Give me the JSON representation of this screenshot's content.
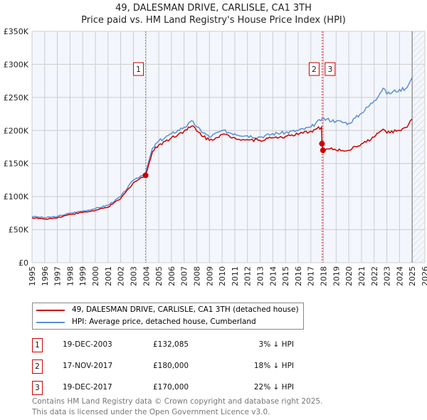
{
  "chart_data": {
    "type": "line",
    "title": "49, DALESMAN DRIVE, CARLISLE, CA1 3TH",
    "subtitle": "Price paid vs. HM Land Registry's House Price Index (HPI)",
    "xlim": [
      1995,
      2026
    ],
    "ylim": [
      0,
      350000
    ],
    "x_ticks": [
      "1995",
      "1996",
      "1997",
      "1998",
      "1999",
      "2000",
      "2001",
      "2002",
      "2003",
      "2004",
      "2005",
      "2006",
      "2007",
      "2008",
      "2009",
      "2010",
      "2011",
      "2012",
      "2013",
      "2014",
      "2015",
      "2016",
      "2017",
      "2018",
      "2019",
      "2020",
      "2021",
      "2022",
      "2023",
      "2024",
      "2025",
      "2026"
    ],
    "y_ticks": [
      {
        "v": 0,
        "l": "£0"
      },
      {
        "v": 50000,
        "l": "£50K"
      },
      {
        "v": 100000,
        "l": "£100K"
      },
      {
        "v": 150000,
        "l": "£150K"
      },
      {
        "v": 200000,
        "l": "£200K"
      },
      {
        "v": 250000,
        "l": "£250K"
      },
      {
        "v": 300000,
        "l": "£300K"
      },
      {
        "v": 350000,
        "l": "£350K"
      }
    ],
    "grid": true,
    "forecast_start": 2025.0,
    "series": [
      {
        "name": "49, DALESMAN DRIVE, CARLISLE, CA1 3TH (detached house)",
        "color": "#cc0000",
        "x": [
          1995,
          1996,
          1997,
          1998,
          1999,
          2000,
          2001,
          2002,
          2003,
          2003.96,
          2004.5,
          2005,
          2006,
          2007,
          2007.7,
          2008,
          2009,
          2010,
          2011,
          2012,
          2013,
          2014,
          2015,
          2016,
          2017,
          2017.85,
          2017.88,
          2017.96,
          2018.5,
          2019,
          2020,
          2021,
          2022,
          2022.7,
          2023,
          2024,
          2024.6,
          2025
        ],
        "y": [
          68000,
          66000,
          68000,
          73000,
          76000,
          79000,
          84000,
          97000,
          121000,
          132085,
          168000,
          178000,
          189000,
          199000,
          207000,
          199000,
          185000,
          194000,
          189000,
          186000,
          185000,
          189000,
          191000,
          194000,
          199000,
          205000,
          180000,
          170000,
          172000,
          170000,
          170000,
          180000,
          190000,
          202000,
          196000,
          200000,
          205000,
          217000
        ]
      },
      {
        "name": "HPI: Average price, detached house, Cumberland",
        "color": "#5b8fd4",
        "x": [
          1995,
          1996,
          1997,
          1998,
          1999,
          2000,
          2001,
          2002,
          2003,
          2003.96,
          2004.5,
          2005,
          2006,
          2007,
          2007.7,
          2008,
          2009,
          2010,
          2011,
          2012,
          2013,
          2014,
          2015,
          2016,
          2017,
          2017.9,
          2019,
          2020,
          2021,
          2022,
          2022.7,
          2023,
          2024,
          2024.6,
          2025
        ],
        "y": [
          70000,
          68000,
          70000,
          75000,
          78000,
          82000,
          87000,
          100000,
          125000,
          136000,
          173000,
          184000,
          195000,
          205000,
          214000,
          205000,
          190000,
          200000,
          195000,
          192000,
          190000,
          195000,
          197000,
          200000,
          205000,
          218000,
          214000,
          211000,
          226000,
          245000,
          264000,
          255000,
          262000,
          265000,
          280000
        ]
      }
    ],
    "sales": [
      {
        "n": "1",
        "x": 2003.96,
        "y": 132085
      },
      {
        "n": "2",
        "x": 2017.88,
        "y": 180000
      },
      {
        "n": "3",
        "x": 2017.96,
        "y": 170000
      }
    ]
  },
  "legend": [
    "49, DALESMAN DRIVE, CARLISLE, CA1 3TH (detached house)",
    "HPI: Average price, detached house, Cumberland"
  ],
  "table": [
    {
      "n": "1",
      "date": "19-DEC-2003",
      "price": "£132,085",
      "hpi": "3% ↓ HPI"
    },
    {
      "n": "2",
      "date": "17-NOV-2017",
      "price": "£180,000",
      "hpi": "18% ↓ HPI"
    },
    {
      "n": "3",
      "date": "19-DEC-2017",
      "price": "£170,000",
      "hpi": "22% ↓ HPI"
    }
  ],
  "footer": [
    "Contains HM Land Registry data © Crown copyright and database right 2025.",
    "This data is licensed under the Open Government Licence v3.0."
  ]
}
